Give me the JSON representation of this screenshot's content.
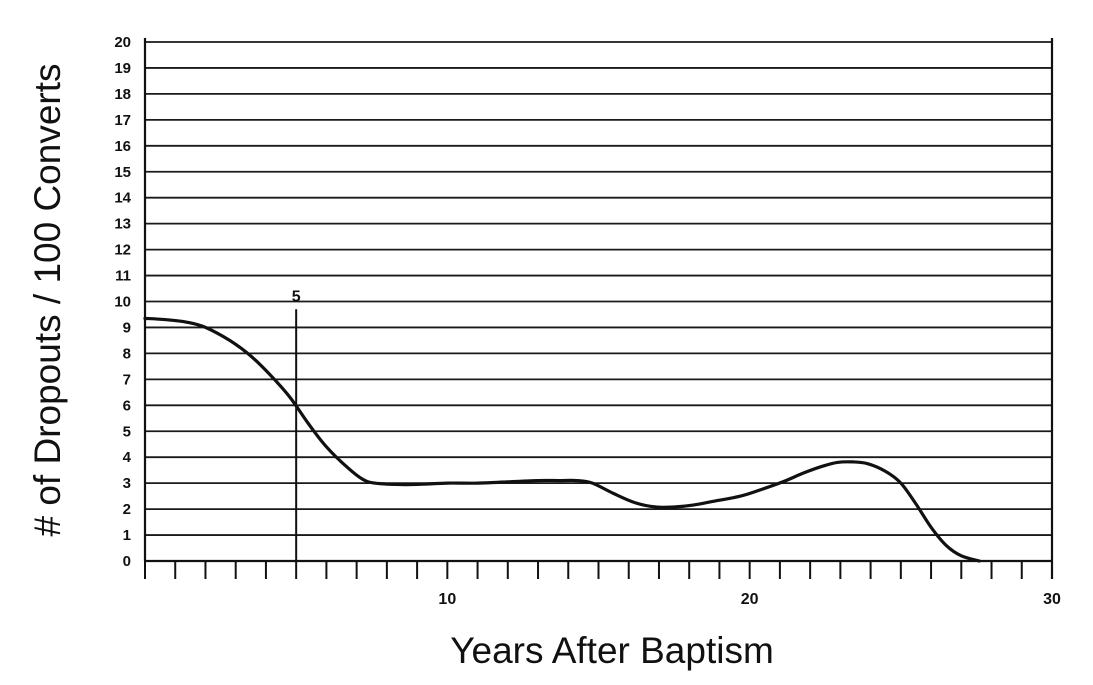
{
  "chart_data": {
    "type": "line",
    "title": "",
    "xlabel": "Years After Baptism",
    "ylabel": "# of Dropouts / 100 Converts",
    "xlim": [
      0,
      30
    ],
    "ylim": [
      0,
      20
    ],
    "grid": "horizontal",
    "x_ticks": [
      10,
      20,
      30
    ],
    "x_minor_step": 1,
    "y_ticks": [
      0,
      1,
      2,
      3,
      4,
      5,
      6,
      7,
      8,
      9,
      10,
      11,
      12,
      13,
      14,
      15,
      16,
      17,
      18,
      19,
      20
    ],
    "marker": {
      "x": 5,
      "label": "5",
      "top_value": 9.7
    },
    "series": [
      {
        "x": [
          0,
          0.7,
          1.4,
          2,
          2.8,
          3.5,
          4.2,
          4.8,
          5.4,
          6,
          6.7,
          7.2,
          7.6,
          8.3,
          9,
          10,
          11,
          12,
          13,
          13.7,
          14.3,
          14.8,
          15.5,
          16.2,
          16.9,
          17.5,
          18.1,
          18.8,
          19.7,
          20.5,
          21.2,
          21.8,
          22.4,
          22.9,
          23.4,
          23.9,
          24.5,
          25,
          25.5,
          26,
          26.5,
          27,
          27.6
        ],
        "y": [
          9.35,
          9.3,
          9.2,
          9.0,
          8.5,
          7.9,
          7.1,
          6.3,
          5.3,
          4.4,
          3.6,
          3.15,
          3.0,
          2.95,
          2.95,
          3.0,
          3.0,
          3.05,
          3.1,
          3.1,
          3.1,
          3.0,
          2.6,
          2.25,
          2.08,
          2.08,
          2.15,
          2.3,
          2.5,
          2.8,
          3.1,
          3.4,
          3.65,
          3.8,
          3.82,
          3.75,
          3.45,
          3.0,
          2.2,
          1.3,
          0.6,
          0.2,
          0.0
        ]
      }
    ]
  }
}
